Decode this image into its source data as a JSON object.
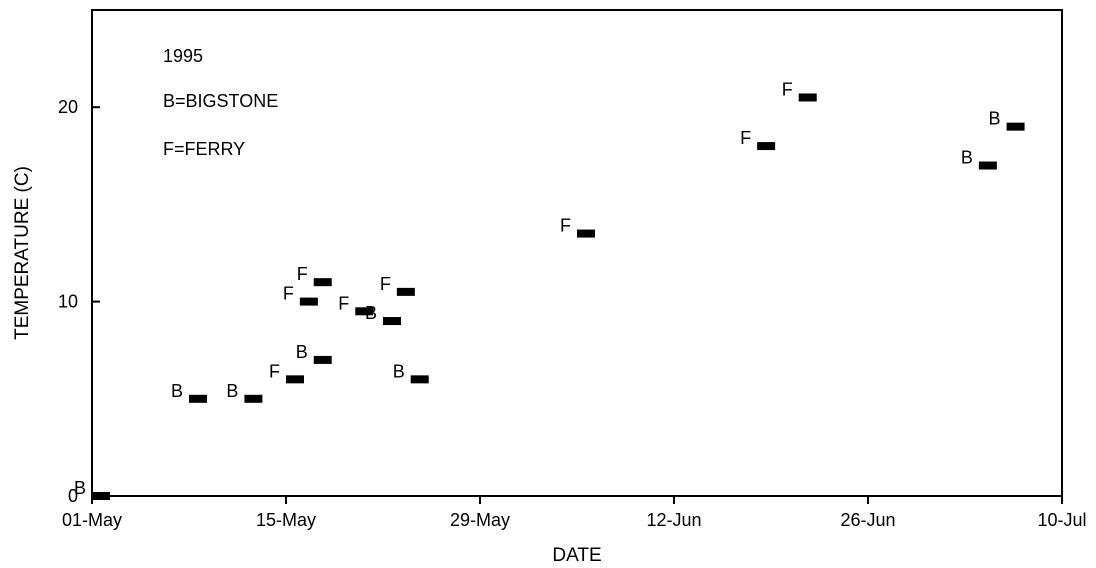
{
  "chart_data": {
    "type": "scatter",
    "title": "",
    "xlabel": "DATE",
    "ylabel": "TEMPERATURE (C)",
    "x_type": "date",
    "xlim": [
      "1995-05-01",
      "1995-07-10"
    ],
    "ylim": [
      0,
      25
    ],
    "xticks": [
      "01-May",
      "15-May",
      "29-May",
      "12-Jun",
      "26-Jun",
      "10-Jul"
    ],
    "yticks": [
      0,
      10,
      20
    ],
    "grid": false,
    "legend": {
      "placement": "top-left",
      "lines": [
        "1995",
        "B=BIGSTONE",
        "F=FERRY"
      ]
    },
    "series": [
      {
        "name": "BIGSTONE",
        "marker": "B",
        "points": [
          {
            "x": "1995-05-01",
            "y": 0
          },
          {
            "x": "1995-05-08",
            "y": 5
          },
          {
            "x": "1995-05-12",
            "y": 5
          },
          {
            "x": "1995-05-17",
            "y": 7
          },
          {
            "x": "1995-05-22",
            "y": 9
          },
          {
            "x": "1995-05-24",
            "y": 6
          },
          {
            "x": "1995-07-04",
            "y": 17
          },
          {
            "x": "1995-07-06",
            "y": 19
          }
        ]
      },
      {
        "name": "FERRY",
        "marker": "F",
        "points": [
          {
            "x": "1995-05-15",
            "y": 6
          },
          {
            "x": "1995-05-16",
            "y": 10
          },
          {
            "x": "1995-05-17",
            "y": 11
          },
          {
            "x": "1995-05-20",
            "y": 9.5
          },
          {
            "x": "1995-05-23",
            "y": 10.5
          },
          {
            "x": "1995-06-05",
            "y": 13.5
          },
          {
            "x": "1995-06-18",
            "y": 18
          },
          {
            "x": "1995-06-21",
            "y": 20.5
          }
        ]
      }
    ]
  }
}
